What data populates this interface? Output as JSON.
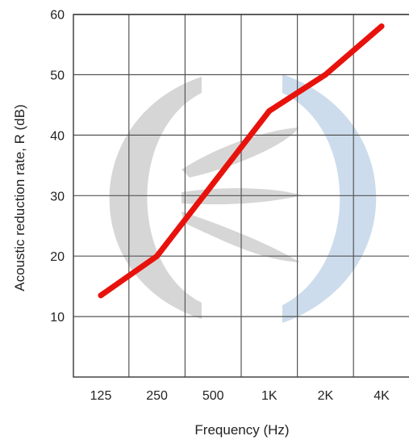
{
  "chart_data": {
    "type": "line",
    "title": "",
    "xlabel": "Frequency (Hz)",
    "ylabel": "Acoustic reduction rate, R (dB)",
    "categories": [
      "125",
      "250",
      "500",
      "1K",
      "2K",
      "4K"
    ],
    "ylim": [
      0,
      60
    ],
    "yticks": [
      10,
      20,
      30,
      40,
      50,
      60
    ],
    "grid": true,
    "legend": "none",
    "series": [
      {
        "values": [
          13.5,
          20,
          32,
          44,
          50,
          58
        ]
      }
    ],
    "colors": {
      "line": "#e8120c",
      "grid": "#555555",
      "watermark_gray": "#cfcfcf",
      "watermark_blue": "#c7d8ea"
    }
  }
}
